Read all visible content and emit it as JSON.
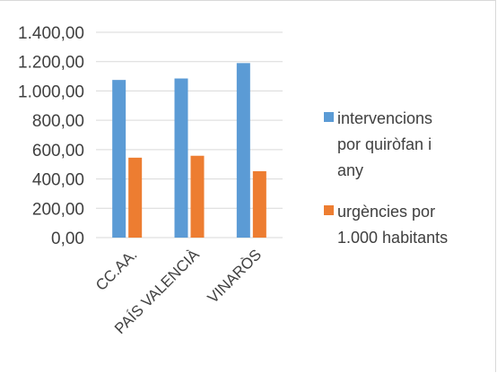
{
  "chart_data": {
    "type": "bar",
    "categories": [
      "CC.AA.",
      "PAÍS VALENCIÀ",
      "VINARÒS"
    ],
    "series": [
      {
        "name": "intervencions por quiròfan i any",
        "name_lines": [
          "intervencions",
          "por quiròfan i",
          "any"
        ],
        "color": "#5b9bd5",
        "values": [
          1075,
          1085,
          1190
        ]
      },
      {
        "name": "urgències por 1.000 habitants",
        "name_lines": [
          "urgències por",
          "1.000 habitants"
        ],
        "color": "#ed7d31",
        "values": [
          545,
          558,
          453
        ]
      }
    ],
    "yticks": [
      "0,00",
      "200,00",
      "400,00",
      "600,00",
      "800,00",
      "1.000,00",
      "1.200,00",
      "1.400,00"
    ],
    "ylim": [
      0,
      1400
    ],
    "grid": true,
    "legend_position": "right"
  }
}
